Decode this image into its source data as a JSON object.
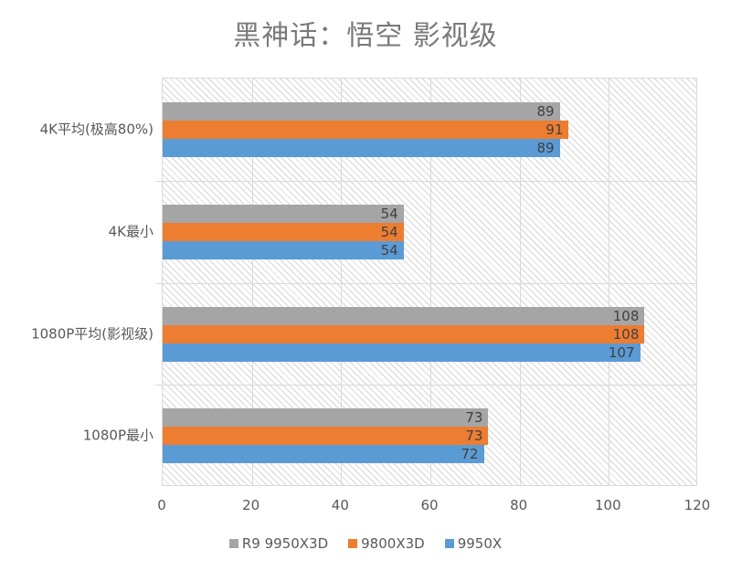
{
  "chart_data": {
    "type": "bar",
    "orientation": "horizontal",
    "title": "黑神话：悟空 影视级",
    "categories": [
      "4K平均(极高80%)",
      "4K最小",
      "1080P平均(影视级)",
      "1080P最小"
    ],
    "series": [
      {
        "name": "R9 9950X3D",
        "color": "#a5a5a5",
        "values": [
          89,
          54,
          108,
          73
        ]
      },
      {
        "name": "9800X3D",
        "color": "#ed7d31",
        "values": [
          91,
          54,
          108,
          73
        ]
      },
      {
        "name": "9950X",
        "color": "#5b9bd5",
        "values": [
          89,
          54,
          107,
          72
        ]
      }
    ],
    "xlabel": "",
    "ylabel": "",
    "xlim": [
      0,
      120
    ],
    "xticks": [
      "0",
      "20",
      "40",
      "60",
      "80",
      "100",
      "120"
    ],
    "grid": true,
    "legend_position": "bottom",
    "data_labels": true
  }
}
